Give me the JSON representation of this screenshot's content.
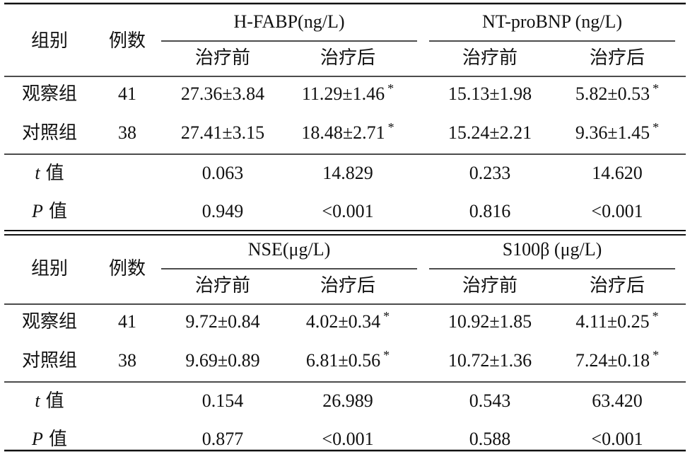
{
  "sections": [
    {
      "header": {
        "group": "组别",
        "count": "例数",
        "measures": [
          {
            "name": "H-FABP(ng/L)",
            "sub": [
              "治疗前",
              "治疗后"
            ]
          },
          {
            "name": "NT-proBNP (ng/L)",
            "sub": [
              "治疗前",
              "治疗后"
            ]
          }
        ]
      },
      "rows": [
        {
          "group": "观察组",
          "n": "41",
          "cells": [
            {
              "text": "27.36±3.84"
            },
            {
              "text": "11.29±1.46",
              "sup": "*"
            },
            {
              "text": "15.13±1.98"
            },
            {
              "text": "5.82±0.53",
              "sup": "*"
            }
          ]
        },
        {
          "group": "对照组",
          "n": "38",
          "cells": [
            {
              "text": "27.41±3.15"
            },
            {
              "text": "18.48±2.71",
              "sup": "*"
            },
            {
              "text": "15.24±2.21"
            },
            {
              "text": "9.36±1.45",
              "sup": "*"
            }
          ]
        }
      ],
      "stats": [
        {
          "var": "t",
          "label": "值",
          "values": [
            "0.063",
            "14.829",
            "0.233",
            "14.620"
          ]
        },
        {
          "var": "P",
          "label": "值",
          "values": [
            "0.949",
            "<0.001",
            "0.816",
            "<0.001"
          ]
        }
      ]
    },
    {
      "header": {
        "group": "组别",
        "count": "例数",
        "measures": [
          {
            "name": "NSE(μg/L)",
            "sub": [
              "治疗前",
              "治疗后"
            ]
          },
          {
            "name": "S100β (μg/L)",
            "sub": [
              "治疗前",
              "治疗后"
            ]
          }
        ]
      },
      "rows": [
        {
          "group": "观察组",
          "n": "41",
          "cells": [
            {
              "text": "9.72±0.84"
            },
            {
              "text": "4.02±0.34",
              "sup": "*"
            },
            {
              "text": "10.92±1.85"
            },
            {
              "text": "4.11±0.25",
              "sup": "*"
            }
          ]
        },
        {
          "group": "对照组",
          "n": "38",
          "cells": [
            {
              "text": "9.69±0.89"
            },
            {
              "text": "6.81±0.56",
              "sup": "*"
            },
            {
              "text": "10.72±1.36"
            },
            {
              "text": "7.24±0.18",
              "sup": "*"
            }
          ]
        }
      ],
      "stats": [
        {
          "var": "t",
          "label": "值",
          "values": [
            "0.154",
            "26.989",
            "0.543",
            "63.420"
          ]
        },
        {
          "var": "P",
          "label": "值",
          "values": [
            "0.877",
            "<0.001",
            "0.588",
            "<0.001"
          ]
        }
      ]
    }
  ]
}
